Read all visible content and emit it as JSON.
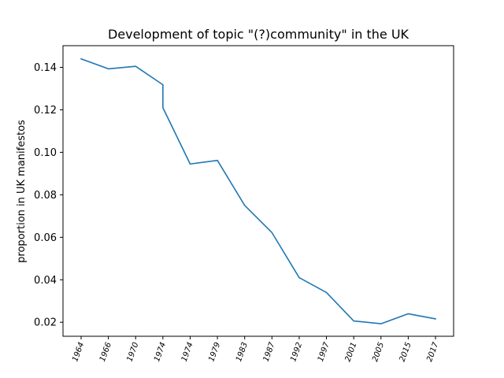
{
  "chart_data": {
    "type": "line",
    "title": "Development of topic \"(?)community\" in the UK",
    "xlabel": "",
    "ylabel": "proportion in UK manifestos",
    "categories": [
      "1964",
      "1966",
      "1970",
      "1974",
      "1974",
      "1979",
      "1983",
      "1987",
      "1992",
      "1997",
      "2001",
      "2005",
      "2015",
      "2017"
    ],
    "series": [
      {
        "points": [
          [
            0,
            0.144
          ],
          [
            1,
            0.1393
          ],
          [
            2,
            0.1405
          ],
          [
            3,
            0.1318
          ],
          [
            3,
            0.121
          ],
          [
            4,
            0.0945
          ],
          [
            5,
            0.0962
          ],
          [
            6,
            0.075
          ],
          [
            7,
            0.0622
          ],
          [
            8,
            0.041
          ],
          [
            9,
            0.034
          ],
          [
            10,
            0.0206
          ],
          [
            11,
            0.0193
          ],
          [
            12,
            0.024
          ],
          [
            13,
            0.0216
          ]
        ],
        "color": "#1f77b4"
      }
    ],
    "yticks": [
      0.02,
      0.04,
      0.06,
      0.08,
      0.1,
      0.12,
      0.14
    ],
    "ytick_labels": [
      "0.02",
      "0.04",
      "0.06",
      "0.08",
      "0.10",
      "0.12",
      "0.14"
    ],
    "ylim": [
      0.0134,
      0.1502
    ],
    "grid": false,
    "legend": "none"
  }
}
